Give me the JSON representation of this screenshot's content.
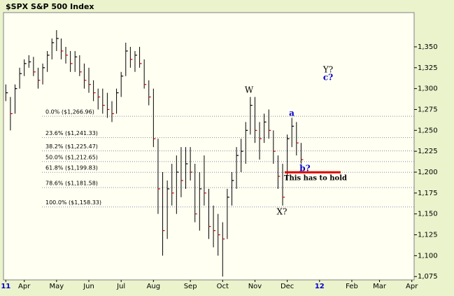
{
  "chart_data": {
    "type": "hlc",
    "title": "$SPX S&P 500 Index",
    "color": "#000000",
    "categories": [
      "11",
      null,
      null,
      null,
      "Apr",
      null,
      null,
      null,
      null,
      null,
      null,
      "May",
      null,
      null,
      null,
      null,
      null,
      null,
      "Jun",
      null,
      null,
      null,
      null,
      null,
      null,
      "Jul",
      null,
      null,
      null,
      null,
      null,
      null,
      "Aug",
      null,
      null,
      null,
      null,
      null,
      null,
      null,
      "Sep",
      null,
      null,
      null,
      null,
      null,
      null,
      "Oct",
      null,
      null,
      null,
      null,
      null,
      null,
      "Nov",
      null,
      null,
      null,
      null,
      null,
      null,
      "Dec",
      null,
      null,
      null,
      null,
      null,
      null,
      "12",
      null,
      null,
      null,
      null,
      null,
      null,
      "Feb",
      null,
      null,
      null,
      null,
      null,
      "Mar",
      null,
      null,
      null,
      null,
      null,
      null,
      "Apr"
    ],
    "series": [
      {
        "name": "High",
        "values": [
          1305,
          1290,
          1305,
          1325,
          1335,
          1340,
          1338,
          1325,
          1330,
          1345,
          1360,
          1370,
          1360,
          1350,
          1345,
          1345,
          1340,
          1330,
          1325,
          1310,
          1300,
          1300,
          1295,
          1285,
          1300,
          1320,
          1355,
          1350,
          1345,
          1350,
          1335,
          1310,
          1300,
          1240,
          1200,
          1190,
          1210,
          1220,
          1230,
          1230,
          1230,
          1210,
          1200,
          1220,
          1180,
          1160,
          1150,
          1140,
          1180,
          1200,
          1230,
          1240,
          1260,
          1290,
          1290,
          1260,
          1270,
          1275,
          1250,
          1220,
          1210,
          1245,
          1265,
          1260,
          1235,
          null,
          null,
          null,
          null,
          null,
          null,
          null,
          null,
          null,
          null,
          null,
          null,
          null,
          null,
          null,
          null,
          null,
          null,
          null,
          null,
          null,
          null,
          null,
          null
        ]
      },
      {
        "name": "Low",
        "values": [
          1285,
          1250,
          1270,
          1300,
          1315,
          1325,
          1315,
          1300,
          1305,
          1320,
          1335,
          1345,
          1335,
          1330,
          1320,
          1320,
          1315,
          1300,
          1295,
          1285,
          1275,
          1270,
          1265,
          1260,
          1270,
          1290,
          1315,
          1325,
          1320,
          1325,
          1300,
          1280,
          1230,
          1150,
          1100,
          1120,
          1160,
          1150,
          1170,
          1180,
          1190,
          1140,
          1130,
          1160,
          1120,
          1110,
          1100,
          1075,
          1120,
          1160,
          1180,
          1200,
          1210,
          1245,
          1235,
          1215,
          1235,
          1240,
          1210,
          1180,
          1160,
          1190,
          1230,
          1220,
          1210,
          null,
          null,
          null,
          null,
          null,
          null,
          null,
          null,
          null,
          null,
          null,
          null,
          null,
          null,
          null,
          null,
          null,
          null,
          null,
          null,
          null,
          null,
          null,
          null
        ]
      },
      {
        "name": "Close",
        "values": [
          1295,
          1270,
          1300,
          1318,
          1330,
          1332,
          1320,
          1310,
          1325,
          1340,
          1355,
          1360,
          1345,
          1340,
          1330,
          1338,
          1320,
          1310,
          1305,
          1295,
          1290,
          1280,
          1275,
          1270,
          1295,
          1315,
          1345,
          1335,
          1340,
          1330,
          1305,
          1290,
          1240,
          1180,
          1130,
          1180,
          1175,
          1200,
          1190,
          1210,
          1200,
          1150,
          1180,
          1175,
          1135,
          1130,
          1125,
          1120,
          1170,
          1190,
          1220,
          1225,
          1250,
          1280,
          1250,
          1240,
          1260,
          1250,
          1225,
          1195,
          1170,
          1240,
          1255,
          1235,
          1215,
          null,
          null,
          null,
          null,
          null,
          null,
          null,
          null,
          null,
          null,
          null,
          null,
          null,
          null,
          null,
          null,
          null,
          null,
          null,
          null,
          null,
          null,
          null,
          null
        ]
      }
    ],
    "ylim": [
      1071,
      1391
    ],
    "yticks": [
      {
        "value": 1075,
        "label": "1,075"
      },
      {
        "value": 1100,
        "label": "1,100"
      },
      {
        "value": 1125,
        "label": "1,125"
      },
      {
        "value": 1150,
        "label": "1,150"
      },
      {
        "value": 1175,
        "label": "1,175"
      },
      {
        "value": 1200,
        "label": "1,200"
      },
      {
        "value": 1225,
        "label": "1,225"
      },
      {
        "value": 1250,
        "label": "1,250"
      },
      {
        "value": 1275,
        "label": "1,275"
      },
      {
        "value": 1300,
        "label": "1,300"
      },
      {
        "value": 1325,
        "label": "1,325"
      },
      {
        "value": 1350,
        "label": "1,350"
      }
    ],
    "grid": false,
    "fib_levels": [
      {
        "value": 1266.96,
        "label": "0.0% ($1,266.96)"
      },
      {
        "value": 1241.33,
        "label": "23.6% ($1,241.33)"
      },
      {
        "value": 1225.47,
        "label": "38.2% ($1,225.47)"
      },
      {
        "value": 1212.65,
        "label": "50.0% ($1,212.65)"
      },
      {
        "value": 1199.83,
        "label": "61.8% ($1,199.83)"
      },
      {
        "value": 1181.58,
        "label": "78.6% ($1,181.58)"
      },
      {
        "value": 1158.33,
        "label": "100.0% ($1,158.33)"
      }
    ],
    "annotations": [
      "W",
      "X?",
      "Y?",
      "a",
      "b?",
      "c?",
      "This has to hold"
    ]
  }
}
